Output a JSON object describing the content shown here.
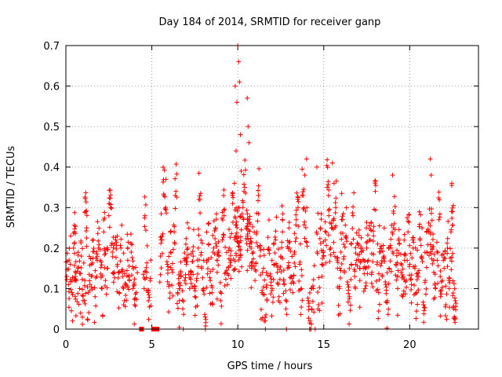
{
  "chart_data": {
    "type": "scatter",
    "title": "Day 184 of 2014, SRMTID for receiver ganp",
    "xlabel": "GPS time / hours",
    "ylabel": "SRMTID / TECUs",
    "xlim": [
      0,
      24
    ],
    "ylim": [
      0,
      0.7
    ],
    "xticks": [
      0,
      5,
      10,
      15,
      20
    ],
    "yticks": [
      0,
      0.1,
      0.2,
      0.3,
      0.4,
      0.5,
      0.6,
      0.7
    ],
    "xtick_labels": [
      "0",
      "5",
      "10",
      "15",
      "20"
    ],
    "ytick_labels": [
      "0",
      "0.1",
      "0.2",
      "0.3",
      "0.4",
      "0.5",
      "0.6",
      "0.7"
    ],
    "grid": true,
    "marker": "plus",
    "color": "#ff0000",
    "series": [
      {
        "name": "SRMTID",
        "approx_density_profile": "hour-binned typical range and spikes",
        "points": [
          [
            0.05,
            0.13
          ],
          [
            0.15,
            0.11
          ],
          [
            0.25,
            0.16
          ],
          [
            0.35,
            0.09
          ],
          [
            0.45,
            0.2
          ],
          [
            0.5,
            0.24
          ],
          [
            0.55,
            0.08
          ],
          [
            0.6,
            0.12
          ],
          [
            0.7,
            0.15
          ],
          [
            0.8,
            0.1
          ],
          [
            0.9,
            0.18
          ],
          [
            1.0,
            0.07
          ],
          [
            1.1,
            0.12
          ],
          [
            1.15,
            0.29
          ],
          [
            1.2,
            0.25
          ],
          [
            1.3,
            0.09
          ],
          [
            1.4,
            0.11
          ],
          [
            1.5,
            0.16
          ],
          [
            1.6,
            0.22
          ],
          [
            1.7,
            0.08
          ],
          [
            1.8,
            0.13
          ],
          [
            1.9,
            0.2
          ],
          [
            2.0,
            0.17
          ],
          [
            2.1,
            0.1
          ],
          [
            2.2,
            0.24
          ],
          [
            2.3,
            0.12
          ],
          [
            2.4,
            0.15
          ],
          [
            2.5,
            0.28
          ],
          [
            2.6,
            0.3
          ],
          [
            2.7,
            0.19
          ],
          [
            2.8,
            0.14
          ],
          [
            2.9,
            0.22
          ],
          [
            3.0,
            0.16
          ],
          [
            3.1,
            0.09
          ],
          [
            3.2,
            0.2
          ],
          [
            3.3,
            0.13
          ],
          [
            3.4,
            0.07
          ],
          [
            3.5,
            0.11
          ],
          [
            3.6,
            0.17
          ],
          [
            3.7,
            0.12
          ],
          [
            3.8,
            0.19
          ],
          [
            3.9,
            0.1
          ],
          [
            4.0,
            0.06
          ],
          [
            4.1,
            0.09
          ],
          [
            4.4,
            0.0
          ],
          [
            4.55,
            0.1
          ],
          [
            4.6,
            0.28
          ],
          [
            4.7,
            0.14
          ],
          [
            4.8,
            0.07
          ],
          [
            4.9,
            0.12
          ],
          [
            5.1,
            0.0
          ],
          [
            5.3,
            0.0
          ],
          [
            5.5,
            0.18
          ],
          [
            5.6,
            0.22
          ],
          [
            5.7,
            0.33
          ],
          [
            5.8,
            0.3
          ],
          [
            5.9,
            0.16
          ],
          [
            6.0,
            0.11
          ],
          [
            6.1,
            0.19
          ],
          [
            6.2,
            0.14
          ],
          [
            6.3,
            0.24
          ],
          [
            6.4,
            0.34
          ],
          [
            6.5,
            0.09
          ],
          [
            6.6,
            0.07
          ],
          [
            6.7,
            0.13
          ],
          [
            6.8,
            0.05
          ],
          [
            6.9,
            0.12
          ],
          [
            7.0,
            0.16
          ],
          [
            7.1,
            0.2
          ],
          [
            7.2,
            0.1
          ],
          [
            7.3,
            0.14
          ],
          [
            7.4,
            0.18
          ],
          [
            7.5,
            0.08
          ],
          [
            7.6,
            0.12
          ],
          [
            7.7,
            0.2
          ],
          [
            7.8,
            0.32
          ],
          [
            7.9,
            0.15
          ],
          [
            8.0,
            0.1
          ],
          [
            8.1,
            0.03
          ],
          [
            8.2,
            0.17
          ],
          [
            8.3,
            0.21
          ],
          [
            8.4,
            0.12
          ],
          [
            8.5,
            0.09
          ],
          [
            8.6,
            0.2
          ],
          [
            8.7,
            0.25
          ],
          [
            8.8,
            0.14
          ],
          [
            8.9,
            0.18
          ],
          [
            9.0,
            0.07
          ],
          [
            9.1,
            0.22
          ],
          [
            9.2,
            0.28
          ],
          [
            9.3,
            0.14
          ],
          [
            9.4,
            0.11
          ],
          [
            9.5,
            0.2
          ],
          [
            9.6,
            0.17
          ],
          [
            9.7,
            0.31
          ],
          [
            9.8,
            0.36
          ],
          [
            9.85,
            0.6
          ],
          [
            9.9,
            0.44
          ],
          [
            9.95,
            0.56
          ],
          [
            10.0,
            0.7
          ],
          [
            10.05,
            0.66
          ],
          [
            10.1,
            0.61
          ],
          [
            10.15,
            0.48
          ],
          [
            10.2,
            0.39
          ],
          [
            10.3,
            0.3
          ],
          [
            10.4,
            0.35
          ],
          [
            10.5,
            0.25
          ],
          [
            10.55,
            0.57
          ],
          [
            10.6,
            0.5
          ],
          [
            10.65,
            0.46
          ],
          [
            10.7,
            0.21
          ],
          [
            10.8,
            0.15
          ],
          [
            10.9,
            0.19
          ],
          [
            11.0,
            0.12
          ],
          [
            11.1,
            0.24
          ],
          [
            11.2,
            0.33
          ],
          [
            11.3,
            0.18
          ],
          [
            11.4,
            0.09
          ],
          [
            11.5,
            0.15
          ],
          [
            11.6,
            0.02
          ],
          [
            11.7,
            0.07
          ],
          [
            11.8,
            0.2
          ],
          [
            11.9,
            0.13
          ],
          [
            12.0,
            0.1
          ],
          [
            12.1,
            0.16
          ],
          [
            12.2,
            0.22
          ],
          [
            12.3,
            0.14
          ],
          [
            12.4,
            0.08
          ],
          [
            12.5,
            0.18
          ],
          [
            12.6,
            0.24
          ],
          [
            12.7,
            0.11
          ],
          [
            12.8,
            0.05
          ],
          [
            12.9,
            0.15
          ],
          [
            13.0,
            0.2
          ],
          [
            13.1,
            0.13
          ],
          [
            13.2,
            0.09
          ],
          [
            13.3,
            0.19
          ],
          [
            13.4,
            0.27
          ],
          [
            13.5,
            0.3
          ],
          [
            13.6,
            0.16
          ],
          [
            13.7,
            0.1
          ],
          [
            13.8,
            0.33
          ],
          [
            13.9,
            0.38
          ],
          [
            14.0,
            0.42
          ],
          [
            14.1,
            0.07
          ],
          [
            14.2,
            0.02
          ],
          [
            14.3,
            0.05
          ],
          [
            14.4,
            0.1
          ],
          [
            14.5,
            0.0
          ],
          [
            14.6,
            0.4
          ],
          [
            14.7,
            0.06
          ],
          [
            14.8,
            0.25
          ],
          [
            14.9,
            0.13
          ],
          [
            15.0,
            0.18
          ],
          [
            15.1,
            0.22
          ],
          [
            15.2,
            0.35
          ],
          [
            15.3,
            0.28
          ],
          [
            15.4,
            0.2
          ],
          [
            15.5,
            0.41
          ],
          [
            15.6,
            0.36
          ],
          [
            15.7,
            0.3
          ],
          [
            15.8,
            0.15
          ],
          [
            15.9,
            0.1
          ],
          [
            16.0,
            0.19
          ],
          [
            16.1,
            0.27
          ],
          [
            16.2,
            0.14
          ],
          [
            16.3,
            0.23
          ],
          [
            16.4,
            0.11
          ],
          [
            16.5,
            0.08
          ],
          [
            16.6,
            0.16
          ],
          [
            16.7,
            0.28
          ],
          [
            16.8,
            0.13
          ],
          [
            16.9,
            0.17
          ],
          [
            17.0,
            0.21
          ],
          [
            17.1,
            0.12
          ],
          [
            17.2,
            0.19
          ],
          [
            17.3,
            0.15
          ],
          [
            17.4,
            0.1
          ],
          [
            17.5,
            0.2
          ],
          [
            17.6,
            0.17
          ],
          [
            17.7,
            0.22
          ],
          [
            17.8,
            0.14
          ],
          [
            17.9,
            0.23
          ],
          [
            18.0,
            0.34
          ],
          [
            18.1,
            0.16
          ],
          [
            18.2,
            0.09
          ],
          [
            18.3,
            0.19
          ],
          [
            18.4,
            0.13
          ],
          [
            18.5,
            0.18
          ],
          [
            18.6,
            0.11
          ],
          [
            18.7,
            0.07
          ],
          [
            18.8,
            0.15
          ],
          [
            18.9,
            0.2
          ],
          [
            19.0,
            0.38
          ],
          [
            19.1,
            0.26
          ],
          [
            19.2,
            0.16
          ],
          [
            19.3,
            0.1
          ],
          [
            19.4,
            0.21
          ],
          [
            19.5,
            0.14
          ],
          [
            19.6,
            0.08
          ],
          [
            19.7,
            0.17
          ],
          [
            19.8,
            0.12
          ],
          [
            19.9,
            0.24
          ],
          [
            20.0,
            0.16
          ],
          [
            20.1,
            0.11
          ],
          [
            20.2,
            0.2
          ],
          [
            20.3,
            0.15
          ],
          [
            20.4,
            0.09
          ],
          [
            20.5,
            0.13
          ],
          [
            20.6,
            0.22
          ],
          [
            20.7,
            0.18
          ],
          [
            20.8,
            0.06
          ],
          [
            20.9,
            0.12
          ],
          [
            21.0,
            0.19
          ],
          [
            21.1,
            0.24
          ],
          [
            21.2,
            0.42
          ],
          [
            21.25,
            0.38
          ],
          [
            21.3,
            0.2
          ],
          [
            21.4,
            0.14
          ],
          [
            21.5,
            0.1
          ],
          [
            21.6,
            0.17
          ],
          [
            21.7,
            0.27
          ],
          [
            21.8,
            0.08
          ],
          [
            21.9,
            0.12
          ],
          [
            22.0,
            0.15
          ],
          [
            22.1,
            0.06
          ],
          [
            22.2,
            0.2
          ],
          [
            22.3,
            0.1
          ],
          [
            22.4,
            0.24
          ],
          [
            22.45,
            0.36
          ],
          [
            22.5,
            0.29
          ],
          [
            22.55,
            0.05
          ],
          [
            22.6,
            0.03
          ],
          [
            22.65,
            0.07
          ]
        ],
        "zero_markers": [
          4.4,
          5.1,
          5.3
        ]
      }
    ]
  }
}
